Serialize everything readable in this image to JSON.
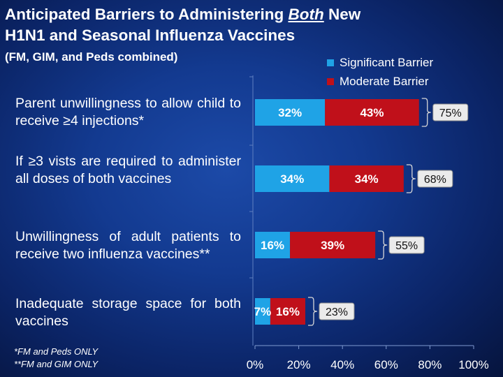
{
  "title_line1_a": "Anticipated Barriers to Administering ",
  "title_line1_em": "Both",
  "title_line1_b": " New",
  "title_line2": "H1N1 and Seasonal Influenza Vaccines",
  "subtitle": "(FM, GIM, and Peds combined)",
  "footnotes": [
    "*FM and Peds ONLY",
    "**FM and GIM ONLY"
  ],
  "colors": {
    "significant": "#1fa3e6",
    "moderate": "#c0101a",
    "total_box": "#ebebeb"
  },
  "chart_data": {
    "type": "bar",
    "orientation": "horizontal",
    "stacked": true,
    "title": "Anticipated Barriers to Administering Both New H1N1 and Seasonal Influenza Vaccines",
    "categories": [
      "Parent unwillingness to allow child to receive ≥4 injections*",
      "If ≥3 vists are required to administer all doses of both vaccines",
      "Unwillingness of adult patients to receive two influenza vaccines**",
      "Inadequate storage space for both vaccines"
    ],
    "series": [
      {
        "name": "Significant Barrier",
        "values": [
          32,
          34,
          16,
          7
        ],
        "labels": [
          "32%",
          "34%",
          "16%",
          "7%"
        ]
      },
      {
        "name": "Moderate Barrier",
        "values": [
          43,
          34,
          39,
          16
        ],
        "labels": [
          "43%",
          "34%",
          "39%",
          "16%"
        ]
      }
    ],
    "totals": [
      75,
      68,
      55,
      23
    ],
    "total_labels": [
      "75%",
      "68%",
      "55%",
      "23%"
    ],
    "xlim": [
      0,
      100
    ],
    "x_ticks": [
      0,
      20,
      40,
      60,
      80,
      100
    ],
    "x_tick_labels": [
      "0%",
      "20%",
      "40%",
      "60%",
      "80%",
      "100%"
    ],
    "xlabel": "",
    "ylabel": "",
    "legend_position": "top-right",
    "grid": false
  }
}
